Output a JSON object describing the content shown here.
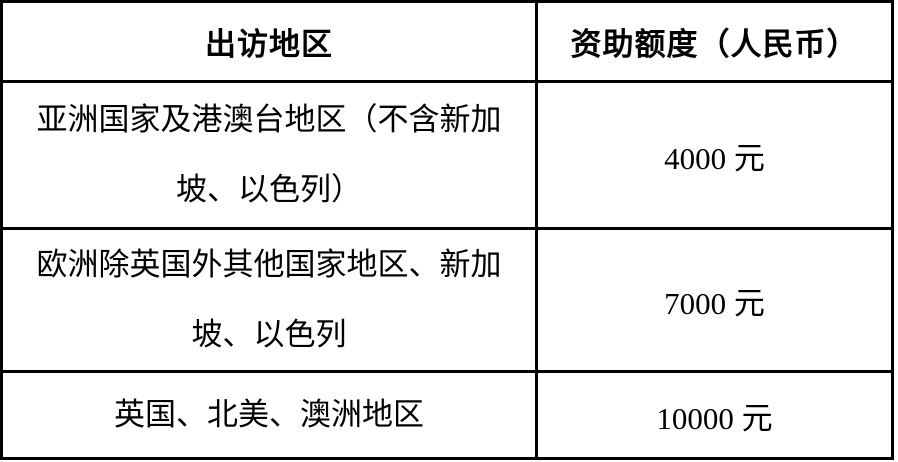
{
  "colors": {
    "background": "#ffffff",
    "border": "#000000",
    "text": "#000000"
  },
  "table": {
    "headers": [
      "出访地区",
      "资助额度（人民币）"
    ],
    "rows": [
      {
        "region": "亚洲国家及港澳台地区（不含新加坡、以色列）",
        "region_lines": [
          "亚洲国家及港澳台地区（不含新加",
          "坡、以色列）"
        ],
        "amount": "4000 元"
      },
      {
        "region": "欧洲除英国外其他国家地区、新加坡、以色列",
        "region_lines": [
          "欧洲除英国外其他国家地区、新加",
          "坡、以色列"
        ],
        "amount": "7000 元"
      },
      {
        "region": "英国、北美、澳洲地区",
        "region_lines": [
          "英国、北美、澳洲地区"
        ],
        "amount": "10000 元"
      }
    ]
  }
}
